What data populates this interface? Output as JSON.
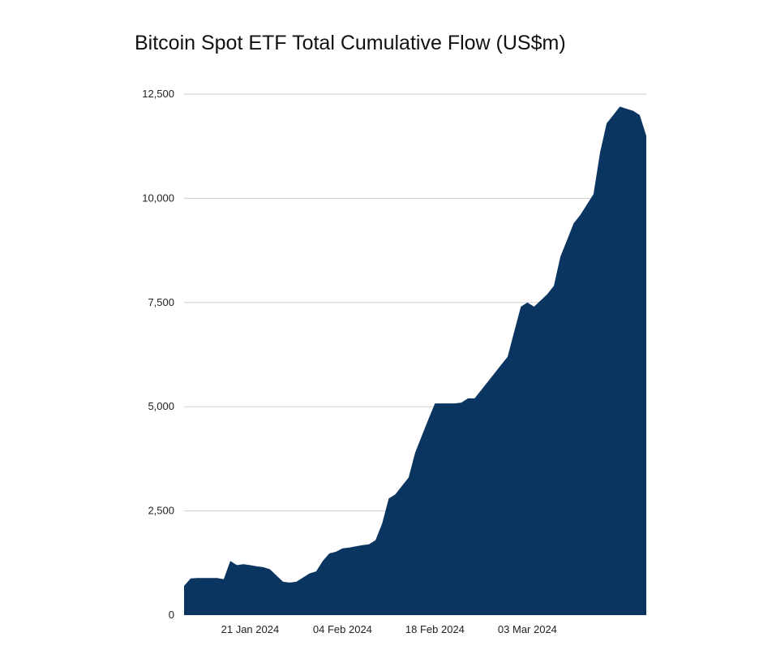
{
  "chart_data": {
    "type": "area",
    "title": "Bitcoin Spot ETF Total Cumulative Flow (US$m)",
    "xlabel": "",
    "ylabel": "",
    "ylim": [
      0,
      12500
    ],
    "yticks": [
      0,
      2500,
      5000,
      7500,
      10000,
      12500
    ],
    "ytick_labels": [
      "0",
      "2,500",
      "5,000",
      "7,500",
      "10,000",
      "12,500"
    ],
    "xlim": [
      "2024-01-11",
      "2024-03-21"
    ],
    "xticks": [
      {
        "date": "2024-01-21",
        "label": "21 Jan 2024"
      },
      {
        "date": "2024-02-04",
        "label": "04 Feb 2024"
      },
      {
        "date": "2024-02-18",
        "label": "18 Feb 2024"
      },
      {
        "date": "2024-03-03",
        "label": "03 Mar 2024"
      }
    ],
    "grid": true,
    "legend": "none",
    "color": "#0b3561",
    "series": [
      {
        "x": [
          "2024-01-11",
          "2024-01-12",
          "2024-01-13",
          "2024-01-14",
          "2024-01-15",
          "2024-01-16",
          "2024-01-17",
          "2024-01-18",
          "2024-01-19",
          "2024-01-20",
          "2024-01-21",
          "2024-01-22",
          "2024-01-23",
          "2024-01-24",
          "2024-01-25",
          "2024-01-26",
          "2024-01-27",
          "2024-01-28",
          "2024-01-29",
          "2024-01-30",
          "2024-01-31",
          "2024-02-01",
          "2024-02-02",
          "2024-02-03",
          "2024-02-04",
          "2024-02-05",
          "2024-02-06",
          "2024-02-07",
          "2024-02-08",
          "2024-02-09",
          "2024-02-10",
          "2024-02-11",
          "2024-02-12",
          "2024-02-13",
          "2024-02-14",
          "2024-02-15",
          "2024-02-16",
          "2024-02-17",
          "2024-02-18",
          "2024-02-19",
          "2024-02-20",
          "2024-02-21",
          "2024-02-22",
          "2024-02-23",
          "2024-02-24",
          "2024-02-25",
          "2024-02-26",
          "2024-02-27",
          "2024-02-28",
          "2024-02-29",
          "2024-03-01",
          "2024-03-02",
          "2024-03-03",
          "2024-03-04",
          "2024-03-05",
          "2024-03-06",
          "2024-03-07",
          "2024-03-08",
          "2024-03-09",
          "2024-03-10",
          "2024-03-11",
          "2024-03-12",
          "2024-03-13",
          "2024-03-14",
          "2024-03-15",
          "2024-03-16",
          "2024-03-17",
          "2024-03-18",
          "2024-03-19",
          "2024-03-20",
          "2024-03-21"
        ],
        "values": [
          700,
          880,
          890,
          890,
          890,
          890,
          860,
          1300,
          1200,
          1220,
          1200,
          1170,
          1150,
          1100,
          950,
          800,
          780,
          800,
          900,
          1000,
          1050,
          1300,
          1480,
          1520,
          1600,
          1620,
          1650,
          1680,
          1700,
          1800,
          2200,
          2800,
          2900,
          3100,
          3300,
          3900,
          4300,
          4700,
          5080,
          5080,
          5080,
          5080,
          5100,
          5200,
          5200,
          5400,
          5600,
          5800,
          6000,
          6200,
          6800,
          7400,
          7500,
          7400,
          7550,
          7700,
          7900,
          8600,
          9000,
          9400,
          9600,
          9850,
          10100,
          11100,
          11800,
          12000,
          12200,
          12150,
          12100,
          12000,
          11500
        ]
      }
    ]
  }
}
